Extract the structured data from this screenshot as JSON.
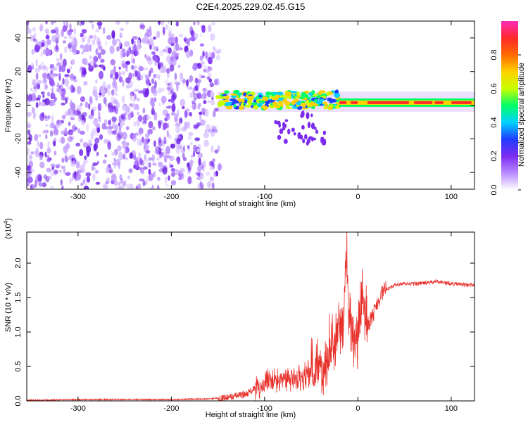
{
  "title": "C2E4.2025.229.02.45.G15",
  "colors": {
    "background": "#ffffff",
    "snr_line": "#e8302a",
    "spectrogram_noise": "#7b2cf0",
    "spectrogram_peak": "#ff2a2a"
  },
  "chart_data": [
    {
      "type": "heatmap",
      "name": "spectrogram",
      "xlabel": "Height of straight line (km)",
      "ylabel": "Frequency (Hz)",
      "xlim": [
        -355,
        125
      ],
      "ylim": [
        -50,
        50
      ],
      "x_ticks": [
        -300,
        -200,
        -100,
        0,
        100
      ],
      "y_ticks": [
        -40,
        -20,
        0,
        20,
        40
      ],
      "x_tick_labels": [
        "-300",
        "-200",
        "-100",
        "0",
        "100"
      ],
      "y_tick_labels": [
        "-40",
        "-20",
        "0",
        "20",
        "40"
      ],
      "colorbar": {
        "label": "Normalized spectral amplitude",
        "range": [
          0,
          1
        ],
        "ticks": [
          0.0,
          0.2,
          0.4,
          0.6,
          0.8
        ],
        "tick_labels": [
          "0.0",
          "0.2",
          "0.4",
          "0.6",
          "0.8"
        ],
        "colormap": [
          "#ffffff",
          "#b98bff",
          "#7b2cf0",
          "#1f3cff",
          "#00d2ff",
          "#00ff66",
          "#c8ff00",
          "#ffd000",
          "#ff6a00",
          "#ff2a2a",
          "#ff2ab8"
        ]
      },
      "regions": [
        {
          "description": "broadband noise",
          "x_range": [
            -355,
            -150
          ],
          "freq_range": [
            -50,
            50
          ],
          "amplitude": 0.15
        },
        {
          "description": "signal onset band",
          "x_range": [
            -150,
            -20
          ],
          "freq_center": 3,
          "amplitude": 0.45
        },
        {
          "description": "carrier line",
          "x_range": [
            -20,
            125
          ],
          "freq_center": 1.5,
          "amplitude": 0.95
        }
      ]
    },
    {
      "type": "line",
      "name": "snr",
      "xlabel": "Height of straight line (km)",
      "ylabel": "SNR (10 * v/v)",
      "y_scale_label": "(x10",
      "y_scale_exp": "4",
      "y_scale_close": ")",
      "xlim": [
        -355,
        125
      ],
      "ylim": [
        0,
        2.45
      ],
      "x_ticks": [
        -300,
        -200,
        -100,
        0,
        100
      ],
      "y_ticks": [
        0.0,
        0.5,
        1.0,
        1.5,
        2.0
      ],
      "x_tick_labels": [
        "-300",
        "-200",
        "-100",
        "0",
        "100"
      ],
      "y_tick_labels": [
        "0.0",
        "0.5",
        "1.0",
        "1.5",
        "2.0"
      ],
      "x": [
        -355,
        -300,
        -250,
        -200,
        -160,
        -140,
        -120,
        -110,
        -100,
        -90,
        -80,
        -70,
        -60,
        -50,
        -40,
        -35,
        -30,
        -25,
        -20,
        -15,
        -12,
        -10,
        -5,
        0,
        5,
        8,
        10,
        15,
        20,
        25,
        30,
        40,
        50,
        60,
        70,
        80,
        85,
        90,
        100,
        110,
        125
      ],
      "y": [
        0.01,
        0.02,
        0.02,
        0.02,
        0.03,
        0.05,
        0.1,
        0.18,
        0.25,
        0.28,
        0.3,
        0.32,
        0.35,
        0.4,
        0.5,
        0.6,
        0.75,
        0.9,
        1.0,
        1.2,
        2.45,
        1.1,
        1.0,
        0.95,
        1.6,
        1.2,
        1.1,
        1.2,
        1.4,
        1.55,
        1.62,
        1.68,
        1.7,
        1.7,
        1.71,
        1.72,
        1.74,
        1.72,
        1.7,
        1.69,
        1.68
      ]
    }
  ]
}
